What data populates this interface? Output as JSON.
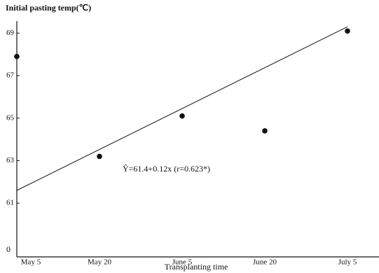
{
  "chart_data": {
    "type": "scatter",
    "title": "Initial pasting temp(℃)",
    "x_label": "Transplanting time",
    "categories": [
      "May 5",
      "May 20",
      "June 5",
      "June 20",
      "July 5"
    ],
    "values": [
      67.9,
      63.2,
      65.1,
      64.4,
      69.1
    ],
    "color": "#111111",
    "ylim": [
      58.8,
      69.9
    ],
    "yticks": [
      61,
      63,
      65,
      67,
      69
    ],
    "y_origin_label": "0",
    "trend": {
      "start": 61.6,
      "end": 69.3
    },
    "annotation": "Ŷ=61.4+0.12x  (r=0.623*)"
  }
}
